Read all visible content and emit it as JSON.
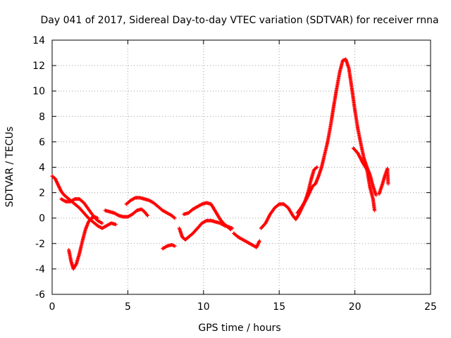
{
  "chart_data": {
    "type": "scatter",
    "title": "Day 041 of 2017, Sidereal Day-to-day VTEC variation (SDTVAR) for receiver rnna",
    "xlabel": "GPS time / hours",
    "ylabel": "SDTVAR / TECUs",
    "xlim": [
      0,
      25
    ],
    "ylim": [
      -6,
      14
    ],
    "xticks": [
      "0",
      "5",
      "10",
      "15",
      "20",
      "25"
    ],
    "yticks": [
      "-6",
      "-4",
      "-2",
      "0",
      "2",
      "4",
      "6",
      "8",
      "10",
      "12",
      "14"
    ],
    "grid": true,
    "marker": "plus",
    "color": "#ff0000",
    "segments": [
      [
        [
          0.0,
          3.3
        ],
        [
          0.2,
          3.1
        ],
        [
          0.4,
          2.6
        ],
        [
          0.6,
          2.1
        ],
        [
          0.8,
          1.8
        ],
        [
          1.0,
          1.6
        ],
        [
          1.2,
          1.4
        ],
        [
          1.5,
          1.1
        ],
        [
          1.8,
          0.8
        ],
        [
          2.1,
          0.4
        ],
        [
          2.4,
          0.0
        ],
        [
          2.7,
          -0.3
        ],
        [
          3.0,
          -0.6
        ],
        [
          3.3,
          -0.8
        ],
        [
          3.6,
          -0.6
        ],
        [
          3.9,
          -0.4
        ],
        [
          4.2,
          -0.5
        ]
      ],
      [
        [
          0.6,
          1.5
        ],
        [
          0.9,
          1.3
        ],
        [
          1.2,
          1.3
        ],
        [
          1.5,
          1.5
        ],
        [
          1.8,
          1.5
        ],
        [
          2.1,
          1.2
        ],
        [
          2.4,
          0.7
        ],
        [
          2.7,
          0.2
        ],
        [
          3.0,
          -0.2
        ],
        [
          3.3,
          -0.4
        ]
      ],
      [
        [
          1.1,
          -2.5
        ],
        [
          1.25,
          -3.4
        ],
        [
          1.4,
          -4.0
        ],
        [
          1.6,
          -3.6
        ],
        [
          1.8,
          -2.8
        ],
        [
          2.0,
          -1.8
        ],
        [
          2.2,
          -0.9
        ],
        [
          2.4,
          -0.3
        ],
        [
          2.6,
          0.0
        ],
        [
          2.8,
          0.1
        ],
        [
          3.0,
          0.0
        ]
      ],
      [
        [
          3.5,
          0.6
        ],
        [
          3.8,
          0.5
        ],
        [
          4.1,
          0.4
        ],
        [
          4.4,
          0.2
        ],
        [
          4.7,
          0.1
        ],
        [
          5.0,
          0.1
        ],
        [
          5.3,
          0.3
        ],
        [
          5.6,
          0.6
        ],
        [
          5.9,
          0.7
        ],
        [
          6.1,
          0.5
        ],
        [
          6.3,
          0.2
        ]
      ],
      [
        [
          4.9,
          1.1
        ],
        [
          5.2,
          1.4
        ],
        [
          5.5,
          1.6
        ],
        [
          5.8,
          1.6
        ],
        [
          6.1,
          1.5
        ],
        [
          6.4,
          1.4
        ],
        [
          6.7,
          1.2
        ],
        [
          7.0,
          0.9
        ],
        [
          7.3,
          0.6
        ],
        [
          7.6,
          0.4
        ],
        [
          7.9,
          0.2
        ],
        [
          8.1,
          0.0
        ]
      ],
      [
        [
          7.3,
          -2.4
        ],
        [
          7.6,
          -2.2
        ],
        [
          7.9,
          -2.1
        ],
        [
          8.1,
          -2.2
        ]
      ],
      [
        [
          8.4,
          -0.8
        ],
        [
          8.6,
          -1.5
        ],
        [
          8.8,
          -1.7
        ],
        [
          9.0,
          -1.5
        ],
        [
          9.3,
          -1.2
        ],
        [
          9.6,
          -0.8
        ],
        [
          9.9,
          -0.4
        ],
        [
          10.2,
          -0.2
        ],
        [
          10.5,
          -0.2
        ],
        [
          10.8,
          -0.3
        ],
        [
          11.1,
          -0.4
        ],
        [
          11.4,
          -0.6
        ],
        [
          11.7,
          -0.7
        ],
        [
          11.9,
          -0.8
        ]
      ],
      [
        [
          8.7,
          0.3
        ],
        [
          9.0,
          0.4
        ],
        [
          9.3,
          0.7
        ],
        [
          9.6,
          0.9
        ],
        [
          9.9,
          1.1
        ],
        [
          10.2,
          1.2
        ],
        [
          10.5,
          1.1
        ],
        [
          10.7,
          0.7
        ],
        [
          10.9,
          0.3
        ],
        [
          11.1,
          -0.1
        ],
        [
          11.3,
          -0.4
        ],
        [
          11.6,
          -0.7
        ],
        [
          11.8,
          -0.9
        ]
      ],
      [
        [
          12.0,
          -1.2
        ],
        [
          12.3,
          -1.5
        ],
        [
          12.6,
          -1.7
        ],
        [
          12.9,
          -1.9
        ],
        [
          13.2,
          -2.1
        ],
        [
          13.5,
          -2.3
        ],
        [
          13.7,
          -1.8
        ]
      ],
      [
        [
          13.8,
          -0.8
        ],
        [
          14.1,
          -0.4
        ],
        [
          14.4,
          0.3
        ],
        [
          14.7,
          0.8
        ],
        [
          15.0,
          1.1
        ],
        [
          15.3,
          1.1
        ],
        [
          15.6,
          0.8
        ],
        [
          15.9,
          0.2
        ],
        [
          16.1,
          -0.1
        ],
        [
          16.3,
          0.3
        ],
        [
          16.5,
          0.8
        ],
        [
          16.7,
          1.3
        ],
        [
          16.9,
          2.0
        ],
        [
          17.1,
          3.0
        ],
        [
          17.3,
          3.8
        ],
        [
          17.5,
          4.0
        ]
      ],
      [
        [
          16.2,
          0.4
        ],
        [
          16.5,
          0.9
        ],
        [
          16.8,
          1.5
        ],
        [
          17.0,
          2.0
        ],
        [
          17.2,
          2.5
        ],
        [
          17.4,
          2.7
        ],
        [
          17.6,
          3.3
        ],
        [
          17.8,
          4.0
        ],
        [
          18.0,
          5.0
        ],
        [
          18.2,
          6.0
        ],
        [
          18.4,
          7.3
        ],
        [
          18.6,
          8.8
        ],
        [
          18.8,
          10.2
        ],
        [
          19.0,
          11.5
        ],
        [
          19.2,
          12.4
        ],
        [
          19.4,
          12.5
        ],
        [
          19.6,
          11.8
        ],
        [
          19.8,
          10.2
        ],
        [
          20.0,
          8.5
        ],
        [
          20.2,
          7.0
        ],
        [
          20.4,
          5.8
        ],
        [
          20.6,
          4.7
        ],
        [
          20.8,
          4.0
        ],
        [
          21.0,
          3.4
        ],
        [
          21.2,
          2.5
        ],
        [
          21.4,
          1.8
        ]
      ],
      [
        [
          19.9,
          5.5
        ],
        [
          20.2,
          5.1
        ],
        [
          20.5,
          4.4
        ],
        [
          20.8,
          3.8
        ],
        [
          21.0,
          2.4
        ],
        [
          21.2,
          1.5
        ],
        [
          21.3,
          0.6
        ]
      ],
      [
        [
          21.6,
          1.9
        ],
        [
          21.8,
          2.6
        ],
        [
          22.0,
          3.4
        ],
        [
          22.15,
          3.9
        ],
        [
          22.2,
          2.7
        ]
      ]
    ]
  }
}
